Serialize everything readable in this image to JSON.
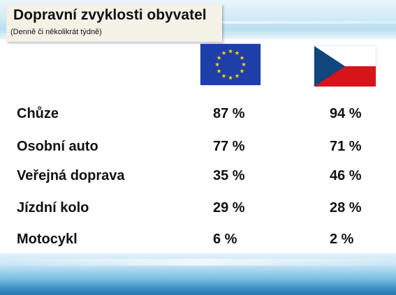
{
  "header": {
    "title": "Dopravní zvyklosti obyvatel",
    "subtitle": "(Denně či několikrát týdně)"
  },
  "columns": [
    {
      "icon": "eu-flag-icon",
      "colors": {
        "field": "#1f3fa8",
        "stars": "#ffd400"
      }
    },
    {
      "icon": "czech-flag-icon",
      "colors": {
        "white": "#ffffff",
        "red": "#d7141a",
        "blue": "#11457e"
      }
    }
  ],
  "rows": [
    {
      "label": "Chůze",
      "eu": "87 %",
      "cz": "94 %"
    },
    {
      "label": "Osobní auto",
      "eu": "77 %",
      "cz": "71 %"
    },
    {
      "label": "Veřejná doprava",
      "eu": "35 %",
      "cz": "46 %"
    },
    {
      "label": "Jízdní kolo",
      "eu": "29 %",
      "cz": "28 %"
    },
    {
      "label": "Motocykl",
      "eu": "6 %",
      "cz": "2 %"
    }
  ]
}
